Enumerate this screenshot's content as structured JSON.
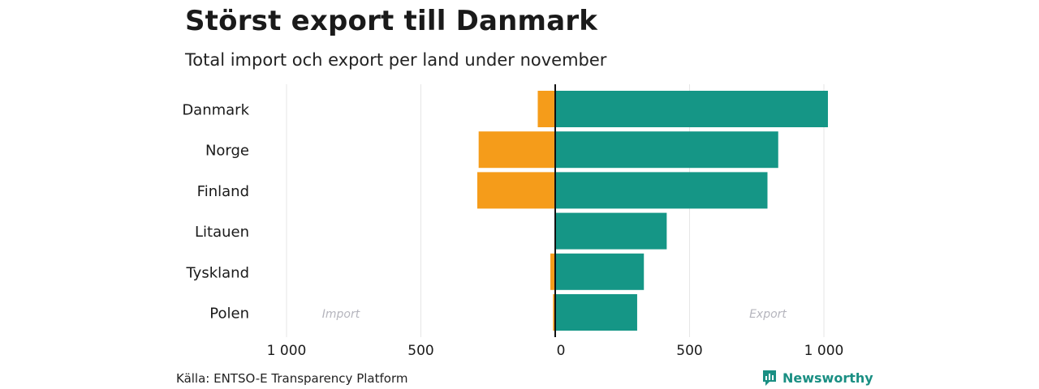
{
  "header": {
    "title": "Störst export till Danmark",
    "subtitle": "Total import och export per land under november"
  },
  "footer": {
    "source": "Källa: ENTSO-E Transparency Platform",
    "brand": "Newsworthy"
  },
  "colors": {
    "import": "#f59c1a",
    "export": "#159686",
    "grid": "#e6e6e6",
    "zero_line": "#111111",
    "side_label": "#b5b5bd"
  },
  "chart_data": {
    "type": "bar",
    "orientation": "horizontal",
    "categories": [
      "Danmark",
      "Norge",
      "Finland",
      "Litauen",
      "Tyskland",
      "Polen"
    ],
    "series": [
      {
        "name": "Import",
        "values": [
          -65,
          -285,
          -290,
          0,
          -18,
          -8
        ]
      },
      {
        "name": "Export",
        "values": [
          1015,
          830,
          790,
          415,
          330,
          305
        ]
      }
    ],
    "xlim": [
      -1000,
      1000
    ],
    "xticks": [
      -1000,
      -500,
      0,
      500,
      1000
    ],
    "xtick_labels": [
      "1 000",
      "500",
      "0",
      "500",
      "1 000"
    ],
    "side_labels": {
      "left": "Import",
      "right": "Export"
    },
    "grid": true,
    "legend": "none"
  }
}
